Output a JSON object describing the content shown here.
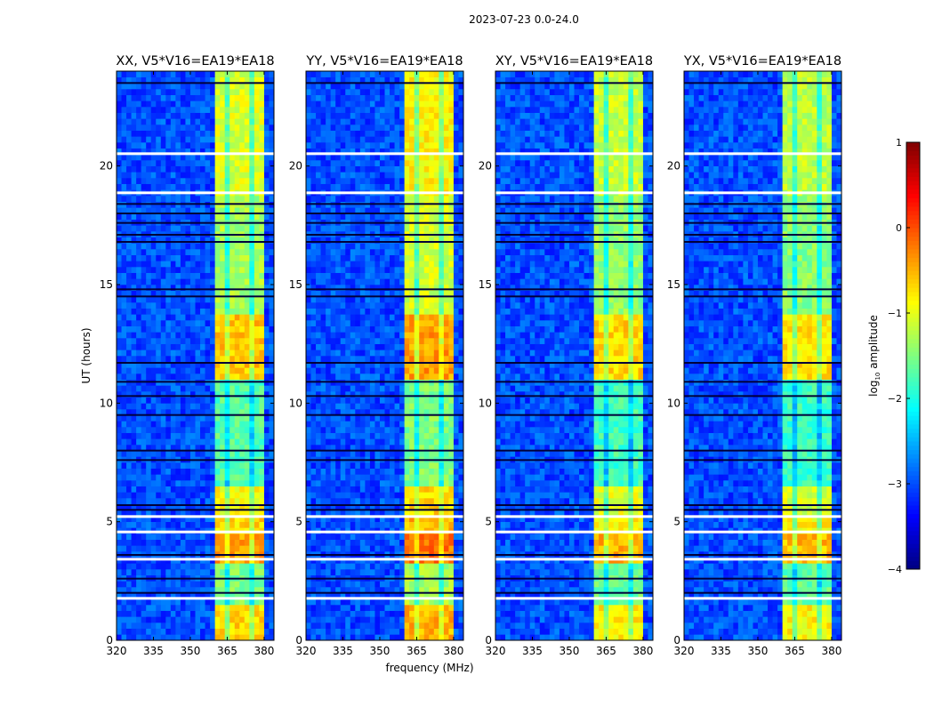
{
  "chart_data": {
    "type": "heatmap",
    "title": "2023-07-23 0.0-24.0",
    "xlabel": "frequency (MHz)",
    "ylabel": "UT (hours)",
    "xlim": [
      320,
      384
    ],
    "ylim": [
      0,
      24
    ],
    "xticks": [
      "320",
      "335",
      "350",
      "365",
      "380"
    ],
    "xtick_values": [
      320,
      335,
      350,
      365,
      380
    ],
    "yticks": [
      "0",
      "5",
      "10",
      "15",
      "20"
    ],
    "ytick_values": [
      0,
      5,
      10,
      15,
      20
    ],
    "panels": [
      {
        "title": "XX, V5*V16=EA19*EA18",
        "band_offset": 0
      },
      {
        "title": "YY, V5*V16=EA19*EA18",
        "band_offset": 0.2
      },
      {
        "title": "XY, V5*V16=EA19*EA18",
        "band_offset": -0.1
      },
      {
        "title": "YX, V5*V16=EA19*EA18",
        "band_offset": -0.15
      }
    ],
    "background_level": -3.0,
    "band_range_mhz": [
      360.5,
      379.5
    ],
    "band_subband_edges_mhz": [
      365,
      370,
      375
    ],
    "band_levels_by_time": [
      {
        "t0": 0,
        "t1": 1.5,
        "level": -0.7
      },
      {
        "t0": 1.5,
        "t1": 3.35,
        "level": -1.5
      },
      {
        "t0": 3.35,
        "t1": 4.5,
        "level": -0.4
      },
      {
        "t0": 4.5,
        "t1": 5.3,
        "level": -0.7
      },
      {
        "t0": 5.3,
        "t1": 6.5,
        "level": -0.9
      },
      {
        "t0": 6.5,
        "t1": 11.0,
        "level": -1.7
      },
      {
        "t0": 11.0,
        "t1": 13.8,
        "level": -0.6
      },
      {
        "t0": 13.8,
        "t1": 18.8,
        "level": -1.3
      },
      {
        "t0": 18.8,
        "t1": 24,
        "level": -1.05
      }
    ],
    "flagged_hours": [
      1.75,
      3.4,
      4.55,
      5.2,
      18.85,
      20.5
    ],
    "dark_hours": [
      2.0,
      2.6,
      3.6,
      5.5,
      5.7,
      7.6,
      8.0,
      9.5,
      10.3,
      10.9,
      11.7,
      14.5,
      14.8,
      16.8,
      17.1,
      17.6,
      18.0,
      18.4,
      23.5
    ],
    "colorbar": {
      "label": "log10 amplitude",
      "label_main": "log",
      "label_sub": "10",
      "label_rest": " amplitude",
      "range": [
        -4,
        1
      ],
      "ticks": [
        "1",
        "0",
        "−1",
        "−2",
        "−3",
        "−4"
      ],
      "tick_values": [
        1,
        0,
        -1,
        -2,
        -3,
        -4
      ],
      "colormap": "jet"
    }
  }
}
